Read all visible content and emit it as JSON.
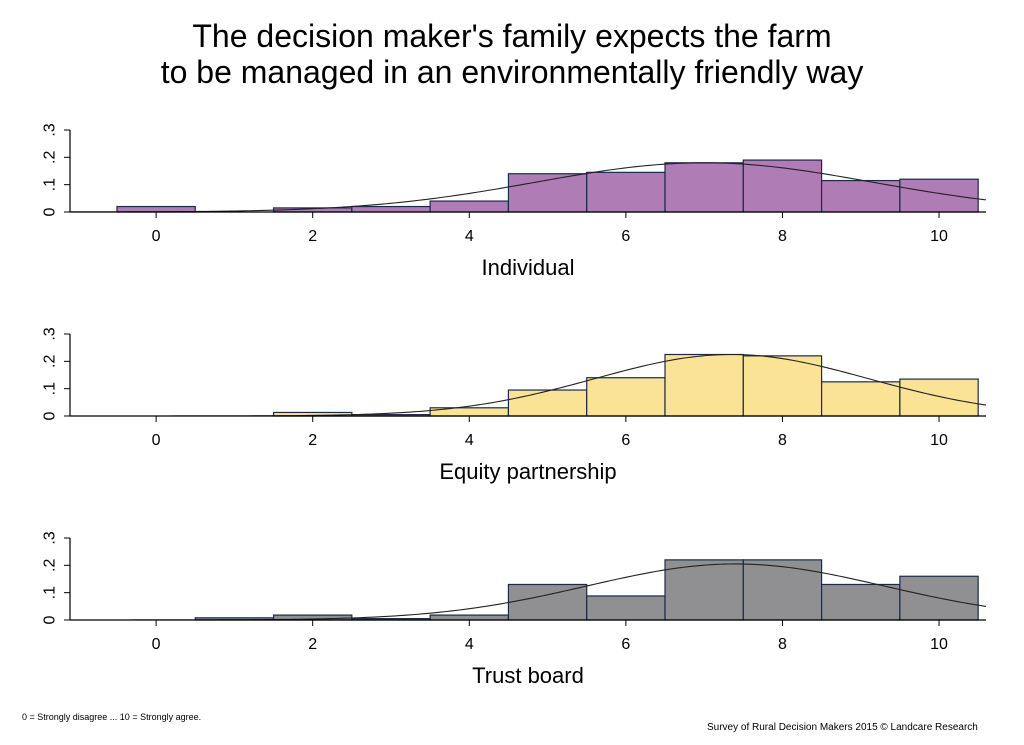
{
  "title_lines": [
    "The decision maker's family expects the farm",
    "to be managed in an environmentally friendly way"
  ],
  "footnote": "0 = Strongly disagree ... 10 = Strongly agree.",
  "source": "Survey of Rural Decision Makers 2015 © Landcare Research",
  "chart_data": [
    {
      "type": "bar",
      "xlabel": "Individual",
      "ylabel": "",
      "categories": [
        0,
        1,
        2,
        3,
        4,
        5,
        6,
        7,
        8,
        9,
        10
      ],
      "values": [
        0.02,
        0.0,
        0.015,
        0.02,
        0.04,
        0.14,
        0.145,
        0.18,
        0.19,
        0.115,
        0.12
      ],
      "fit_curve": {
        "type": "normal",
        "mean": 7.0,
        "sd": 2.15,
        "peak": 0.18
      },
      "xlim": [
        -1.1,
        10.6
      ],
      "ylim": [
        0,
        0.3
      ],
      "xticks": [
        "0",
        "2",
        "4",
        "6",
        "8",
        "10"
      ],
      "yticks": [
        "0",
        ".1",
        ".2",
        ".3"
      ],
      "color": "#b07cb5",
      "grid": false
    },
    {
      "type": "bar",
      "xlabel": "Equity partnership",
      "ylabel": "",
      "categories": [
        0,
        1,
        2,
        3,
        4,
        5,
        6,
        7,
        8,
        9,
        10
      ],
      "values": [
        0.0,
        0.0,
        0.013,
        0.005,
        0.03,
        0.095,
        0.14,
        0.225,
        0.22,
        0.125,
        0.135
      ],
      "fit_curve": {
        "type": "normal",
        "mean": 7.35,
        "sd": 1.75,
        "peak": 0.225
      },
      "xlim": [
        -1.1,
        10.6
      ],
      "ylim": [
        0,
        0.3
      ],
      "xticks": [
        "0",
        "2",
        "4",
        "6",
        "8",
        "10"
      ],
      "yticks": [
        "0",
        ".1",
        ".2",
        ".3"
      ],
      "color": "#fbe395",
      "grid": false
    },
    {
      "type": "bar",
      "xlabel": "Trust board",
      "ylabel": "",
      "categories": [
        0,
        1,
        2,
        3,
        4,
        5,
        6,
        7,
        8,
        9,
        10
      ],
      "values": [
        0.0,
        0.008,
        0.018,
        0.005,
        0.018,
        0.13,
        0.088,
        0.22,
        0.22,
        0.13,
        0.16
      ],
      "fit_curve": {
        "type": "normal",
        "mean": 7.4,
        "sd": 1.9,
        "peak": 0.205
      },
      "xlim": [
        -1.1,
        10.6
      ],
      "ylim": [
        0,
        0.3
      ],
      "xticks": [
        "0",
        "2",
        "4",
        "6",
        "8",
        "10"
      ],
      "yticks": [
        "0",
        ".1",
        ".2",
        ".3"
      ],
      "color": "#909093",
      "grid": false
    }
  ]
}
